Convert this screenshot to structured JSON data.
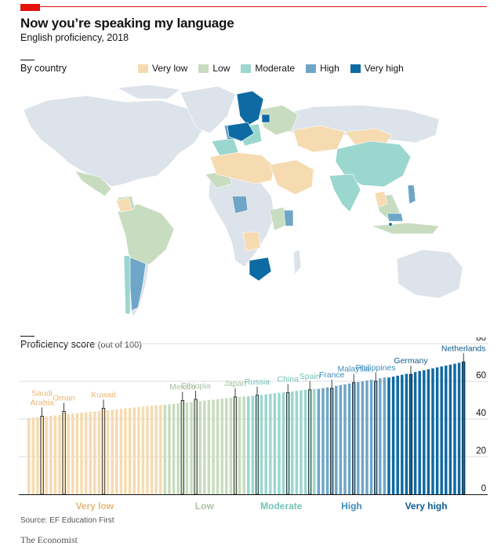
{
  "header": {
    "title": "Now you’re speaking my language",
    "subtitle": "English proficiency, 2018"
  },
  "map_section": {
    "label": "By country"
  },
  "legend": [
    {
      "label": "Very low",
      "color": "#f6dbb1"
    },
    {
      "label": "Low",
      "color": "#c8dcc0"
    },
    {
      "label": "Moderate",
      "color": "#9bd7cf"
    },
    {
      "label": "High",
      "color": "#6fa6c8"
    },
    {
      "label": "Very high",
      "color": "#0e6aa3"
    }
  ],
  "colors": {
    "nodata": "#dde3ea",
    "very_low": "#f6dbb1",
    "low": "#c8dcc0",
    "moderate": "#9bd7cf",
    "high": "#6fa6c8",
    "very_high": "#0e6aa3",
    "very_low_text": "#e8b877",
    "low_text": "#a9c2a1",
    "moderate_text": "#75c3b7",
    "high_text": "#3f8dbd",
    "very_high_text": "#0e5c8f"
  },
  "chart_section": {
    "label": "Proficiency score",
    "label_suffix": "(out of 100)"
  },
  "chart_data": {
    "type": "bar",
    "title": "Proficiency score (out of 100)",
    "ylim": [
      0,
      80
    ],
    "yticks": [
      "0",
      "20",
      "40",
      "60",
      "80"
    ],
    "y_axis_side": "right",
    "bands": [
      {
        "label": "Very low",
        "range": [
          40,
          47.5
        ]
      },
      {
        "label": "Low",
        "range": [
          47.5,
          52
        ]
      },
      {
        "label": "Moderate",
        "range": [
          52,
          56
        ]
      },
      {
        "label": "High",
        "range": [
          56,
          62
        ]
      },
      {
        "label": "Very high",
        "range": [
          62,
          71
        ]
      }
    ],
    "band_counts": [
      31,
      19,
      16,
      16,
      18
    ],
    "first_score": 40.5,
    "last_score": 70.3,
    "annotations": [
      {
        "label": "Saudi Arabia",
        "lines": [
          "Saudi",
          "Arabia"
        ],
        "index": 3,
        "value": 41.5,
        "band": "very_low"
      },
      {
        "label": "Oman",
        "lines": [
          "Oman"
        ],
        "index": 8,
        "value": 44.0,
        "band": "very_low"
      },
      {
        "label": "Kuwait",
        "lines": [
          "Kuwait"
        ],
        "index": 17,
        "value": 45.7,
        "band": "very_low"
      },
      {
        "label": "Mexico",
        "lines": [
          "Mexico"
        ],
        "index": 35,
        "value": 49.8,
        "band": "low"
      },
      {
        "label": "Ethiopia",
        "lines": [
          "Ethiopia"
        ],
        "index": 38,
        "value": 50.4,
        "band": "low"
      },
      {
        "label": "Japan",
        "lines": [
          "Japan"
        ],
        "index": 47,
        "value": 51.7,
        "band": "low"
      },
      {
        "label": "Russia",
        "lines": [
          "Russia"
        ],
        "index": 52,
        "value": 52.6,
        "band": "moderate"
      },
      {
        "label": "China",
        "lines": [
          "China"
        ],
        "index": 59,
        "value": 53.9,
        "band": "moderate"
      },
      {
        "label": "Spain",
        "lines": [
          "Spain"
        ],
        "index": 64,
        "value": 55.5,
        "band": "moderate"
      },
      {
        "label": "France",
        "lines": [
          "France"
        ],
        "index": 69,
        "value": 56.3,
        "band": "high"
      },
      {
        "label": "Malaysia",
        "lines": [
          "Malaysia"
        ],
        "index": 74,
        "value": 59.3,
        "band": "high"
      },
      {
        "label": "Philippines",
        "lines": [
          "Philippines"
        ],
        "index": 79,
        "value": 60.1,
        "band": "high"
      },
      {
        "label": "Germany",
        "lines": [
          "Germany"
        ],
        "index": 87,
        "value": 63.7,
        "band": "very_high"
      },
      {
        "label": "Netherlands",
        "lines": [
          "Netherlands"
        ],
        "index": 99,
        "value": 70.3,
        "band": "very_high"
      }
    ]
  },
  "footer": {
    "source": "Source: EF Education First",
    "brand": "The Economist"
  }
}
